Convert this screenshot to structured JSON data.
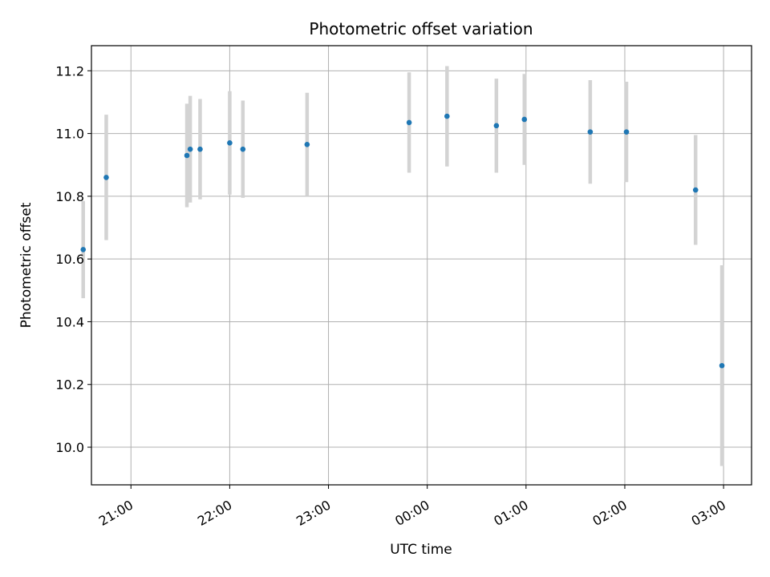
{
  "chart_data": {
    "type": "scatter",
    "title": "Photometric offset variation",
    "xlabel": "UTC time",
    "ylabel": "Photometric offset",
    "x_axis": {
      "kind": "time",
      "range": [
        "20:36",
        "03:17"
      ],
      "ticks": [
        "21:00",
        "22:00",
        "23:00",
        "00:00",
        "01:00",
        "02:00",
        "03:00"
      ]
    },
    "ylim": [
      9.88,
      11.28
    ],
    "yticks": [
      "10.0",
      "10.2",
      "10.4",
      "10.6",
      "10.8",
      "11.0",
      "11.2"
    ],
    "grid": true,
    "marker_color": "#1f77b4",
    "errorbar_color": "#d3d3d3",
    "points": [
      {
        "time": "20:31",
        "y": 10.63,
        "err": 0.155
      },
      {
        "time": "20:45",
        "y": 10.86,
        "err": 0.2
      },
      {
        "time": "21:34",
        "y": 10.93,
        "err": 0.165
      },
      {
        "time": "21:36",
        "y": 10.95,
        "err": 0.17
      },
      {
        "time": "21:42",
        "y": 10.95,
        "err": 0.16
      },
      {
        "time": "22:00",
        "y": 10.97,
        "err": 0.165
      },
      {
        "time": "22:08",
        "y": 10.95,
        "err": 0.155
      },
      {
        "time": "22:47",
        "y": 10.965,
        "err": 0.165
      },
      {
        "time": "23:49",
        "y": 11.035,
        "err": 0.16
      },
      {
        "time": "00:12",
        "y": 11.055,
        "err": 0.16
      },
      {
        "time": "00:42",
        "y": 11.025,
        "err": 0.15
      },
      {
        "time": "00:59",
        "y": 11.045,
        "err": 0.145
      },
      {
        "time": "01:39",
        "y": 11.005,
        "err": 0.165
      },
      {
        "time": "02:01",
        "y": 11.005,
        "err": 0.16
      },
      {
        "time": "02:43",
        "y": 10.82,
        "err": 0.175
      },
      {
        "time": "02:59",
        "y": 10.26,
        "err": 0.32
      }
    ]
  }
}
